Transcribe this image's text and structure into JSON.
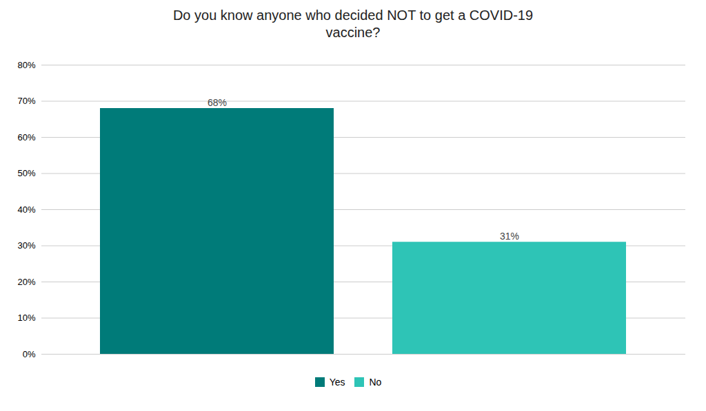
{
  "chart_data": {
    "type": "bar",
    "title": "Do you know anyone who decided NOT to get a COVID-19\nvaccine?",
    "categories": [
      "Yes",
      "No"
    ],
    "values": [
      68,
      31
    ],
    "value_labels": [
      "68%",
      "31%"
    ],
    "colors": [
      "#007b79",
      "#2ec4b6"
    ],
    "ylim": [
      0,
      80
    ],
    "yticks": [
      {
        "value": 0,
        "label": "0%"
      },
      {
        "value": 10,
        "label": "10%"
      },
      {
        "value": 20,
        "label": "20%"
      },
      {
        "value": 30,
        "label": "30%"
      },
      {
        "value": 40,
        "label": "40%"
      },
      {
        "value": 50,
        "label": "50%"
      },
      {
        "value": 60,
        "label": "60%"
      },
      {
        "value": 70,
        "label": "70%"
      },
      {
        "value": 80,
        "label": "80%"
      }
    ],
    "grid": true,
    "legend": "bottom",
    "data_labels": true,
    "tick_labels": "y"
  }
}
